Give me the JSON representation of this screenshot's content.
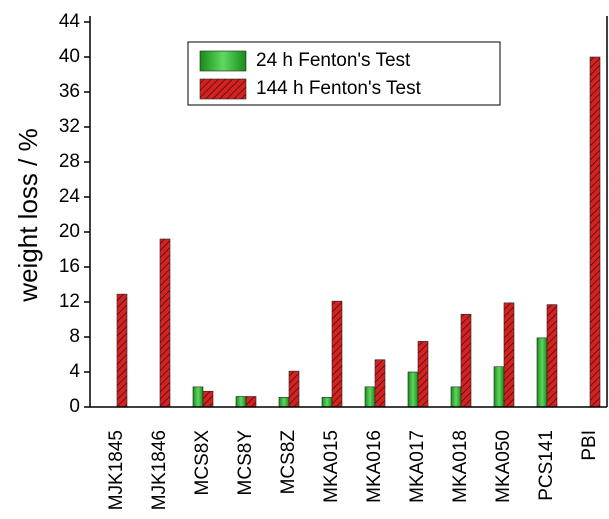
{
  "chart_data": {
    "type": "bar",
    "ylabel": "weight loss / %",
    "categories": [
      "MJK1845",
      "MJK1846",
      "MCS8X",
      "MCS8Y",
      "MCS8Z",
      "MKA015",
      "MKA016",
      "MKA017",
      "MKA018",
      "MKA050",
      "PCS141",
      "PBI"
    ],
    "series": [
      {
        "name": "24 h Fenton's Test",
        "color": "#2fb52f",
        "values": [
          null,
          null,
          2.3,
          1.2,
          1.1,
          1.1,
          2.3,
          4.0,
          2.3,
          4.6,
          7.9,
          null
        ]
      },
      {
        "name": "144 h Fenton's Test",
        "color": "#d42222",
        "values": [
          12.9,
          19.2,
          1.8,
          1.2,
          4.1,
          12.1,
          5.4,
          7.5,
          10.6,
          11.9,
          11.7,
          40.0
        ]
      }
    ],
    "ylim": [
      0,
      44
    ],
    "yticks": [
      0,
      4,
      8,
      12,
      16,
      20,
      24,
      28,
      32,
      36,
      40,
      44
    ],
    "legend": "top"
  }
}
